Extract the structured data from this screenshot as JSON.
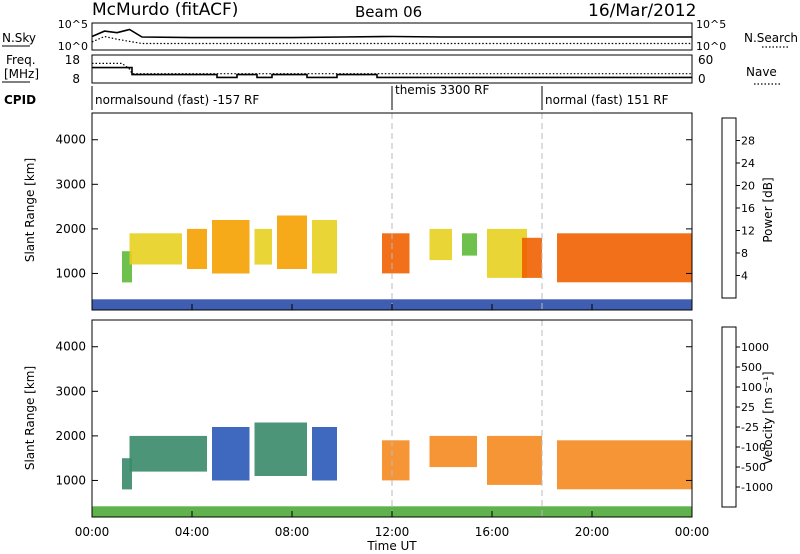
{
  "header": {
    "station": "McMurdo (fitACF)",
    "beam": "Beam 06",
    "date": "16/Mar/2012"
  },
  "top_panels": {
    "nsky_label": "N.Sky",
    "nsearch_label": "N.Search",
    "noise_ticks": [
      "10^5",
      "10^0"
    ],
    "freq_label_1": "Freq.",
    "freq_label_2": "[MHz]",
    "freq_ticks": [
      "18",
      "8"
    ],
    "nave_label": "Nave",
    "nave_ticks": [
      "60",
      "0"
    ],
    "cpid_label": "CPID",
    "cpid_segments": [
      {
        "label": "normalsound (fast) -157 RF",
        "start_hour": 0,
        "end_hour": 12
      },
      {
        "label": "themis 3300 RF",
        "start_hour": 12,
        "end_hour": 18
      },
      {
        "label": "normal (fast) 151 RF",
        "start_hour": 18,
        "end_hour": 24
      }
    ]
  },
  "x_axis": {
    "title": "Time UT",
    "ticks": [
      "00:00",
      "04:00",
      "08:00",
      "12:00",
      "16:00",
      "20:00",
      "00:00"
    ],
    "range_hours": [
      0,
      24
    ]
  },
  "y_axis": {
    "title": "Slant Range [km]",
    "ticks": [
      "1000",
      "2000",
      "3000",
      "4000"
    ],
    "range_km": [
      180,
      4600
    ]
  },
  "power_colorbar": {
    "title": "Power [dB]",
    "labels": [
      "4",
      "8",
      "12",
      "16",
      "20",
      "24",
      "28"
    ],
    "colors": [
      "#1a1aff",
      "#2a4da8",
      "#3a8a6a",
      "#5fba3a",
      "#e8d020",
      "#f5a000",
      "#f06000",
      "#e01000"
    ]
  },
  "velocity_colorbar": {
    "title": "Velocity [m s⁻¹]",
    "labels": [
      "1000",
      "500",
      "100",
      "25",
      "-25",
      "-100",
      "-500",
      "-1000"
    ],
    "colors": [
      "#2233cc",
      "#2a58b8",
      "#3a8a6a",
      "#4faa3a",
      "#c8c8a8",
      "#c8c8c8",
      "#f5b040",
      "#f58a20",
      "#f06010",
      "#e01010"
    ]
  },
  "chart_data": [
    {
      "type": "line",
      "title": "N.Sky / N.Search",
      "x": [
        0,
        0.5,
        1,
        1.5,
        2,
        4,
        6,
        8,
        10,
        12,
        14,
        16,
        18,
        20,
        22,
        24
      ],
      "series": [
        {
          "name": "N.Sky",
          "values": [
            2.5,
            3.5,
            3.2,
            3.8,
            2.4,
            2.3,
            2.3,
            2.3,
            2.4,
            2.5,
            2.4,
            2.4,
            2.4,
            2.4,
            2.4,
            2.4
          ]
        },
        {
          "name": "N.Search",
          "values": [
            1.5,
            2.5,
            2.0,
            1.6,
            1.2,
            1.2,
            1.2,
            1.2,
            1.2,
            1.2,
            1.2,
            1.2,
            1.2,
            1.2,
            1.2,
            1.2
          ]
        }
      ],
      "xlim": [
        0,
        24
      ]
    },
    {
      "type": "line",
      "title": "Freq. / Nave",
      "series": [
        {
          "name": "Freq. [MHz]",
          "points": [
            [
              0,
              13.5
            ],
            [
              1.6,
              13.5
            ],
            [
              1.6,
              11
            ],
            [
              5,
              11
            ],
            [
              5,
              10
            ],
            [
              5.8,
              10
            ],
            [
              5.8,
              11
            ],
            [
              6.6,
              11
            ],
            [
              6.6,
              10
            ],
            [
              7.2,
              10
            ],
            [
              7.2,
              11
            ],
            [
              8.6,
              11
            ],
            [
              8.6,
              10
            ],
            [
              9.8,
              10
            ],
            [
              9.8,
              11
            ],
            [
              11.4,
              11
            ],
            [
              11.4,
              10
            ],
            [
              24,
              10
            ]
          ]
        },
        {
          "name": "Nave",
          "points": [
            [
              0,
              42
            ],
            [
              1.2,
              42
            ],
            [
              1.5,
              30
            ],
            [
              1.6,
              20
            ],
            [
              24,
              20
            ]
          ]
        }
      ],
      "freq_range_mhz": [
        8,
        18
      ],
      "nave_range": [
        0,
        60
      ]
    },
    {
      "type": "heatmap",
      "title": "Power [dB]",
      "xlim": [
        0,
        24
      ],
      "ylim": [
        180,
        4600
      ],
      "colorbar": [
        4,
        28
      ],
      "patches": [
        {
          "t0": 1.2,
          "t1": 1.6,
          "r0": 800,
          "r1": 1500,
          "v": 14
        },
        {
          "t0": 1.5,
          "t1": 3.6,
          "r0": 1200,
          "r1": 1900,
          "v": 18
        },
        {
          "t0": 3.8,
          "t1": 4.6,
          "r0": 1100,
          "r1": 2000,
          "v": 22
        },
        {
          "t0": 4.8,
          "t1": 6.3,
          "r0": 1000,
          "r1": 2200,
          "v": 20
        },
        {
          "t0": 6.5,
          "t1": 7.2,
          "r0": 1200,
          "r1": 2000,
          "v": 18
        },
        {
          "t0": 7.4,
          "t1": 8.6,
          "r0": 1100,
          "r1": 2300,
          "v": 20
        },
        {
          "t0": 8.8,
          "t1": 9.8,
          "r0": 1000,
          "r1": 2200,
          "v": 18
        },
        {
          "t0": 11.6,
          "t1": 12.7,
          "r0": 1000,
          "r1": 1900,
          "v": 24
        },
        {
          "t0": 13.5,
          "t1": 14.4,
          "r0": 1300,
          "r1": 2000,
          "v": 16
        },
        {
          "t0": 14.8,
          "t1": 15.4,
          "r0": 1400,
          "r1": 1900,
          "v": 14
        },
        {
          "t0": 15.8,
          "t1": 17.4,
          "r0": 900,
          "r1": 2000,
          "v": 16
        },
        {
          "t0": 17.2,
          "t1": 18.0,
          "r0": 900,
          "r1": 1800,
          "v": 26
        },
        {
          "t0": 18.6,
          "t1": 24.0,
          "r0": 800,
          "r1": 1900,
          "v": 26
        },
        {
          "t0": 0.0,
          "t1": 24.0,
          "r0": 180,
          "r1": 420,
          "v": 6
        }
      ]
    },
    {
      "type": "heatmap",
      "title": "Velocity [m s⁻¹]",
      "xlim": [
        0,
        24
      ],
      "ylim": [
        180,
        4600
      ],
      "colorbar": [
        -1000,
        1000
      ],
      "patches": [
        {
          "t0": 1.2,
          "t1": 1.6,
          "r0": 800,
          "r1": 1500,
          "v": 100
        },
        {
          "t0": 1.5,
          "t1": 4.6,
          "r0": 1200,
          "r1": 2000,
          "v": 300
        },
        {
          "t0": 4.8,
          "t1": 6.3,
          "r0": 1000,
          "r1": 2200,
          "v": 500
        },
        {
          "t0": 6.5,
          "t1": 8.6,
          "r0": 1100,
          "r1": 2300,
          "v": 300
        },
        {
          "t0": 8.8,
          "t1": 9.8,
          "r0": 1000,
          "r1": 2200,
          "v": 500
        },
        {
          "t0": 11.6,
          "t1": 12.7,
          "r0": 1000,
          "r1": 1900,
          "v": -150
        },
        {
          "t0": 13.5,
          "t1": 15.4,
          "r0": 1300,
          "r1": 2000,
          "v": -120
        },
        {
          "t0": 15.8,
          "t1": 18.0,
          "r0": 900,
          "r1": 2000,
          "v": -200
        },
        {
          "t0": 18.6,
          "t1": 24.0,
          "r0": 800,
          "r1": 1900,
          "v": -150
        },
        {
          "t0": 0.0,
          "t1": 24.0,
          "r0": 180,
          "r1": 420,
          "v": 25
        }
      ]
    }
  ]
}
